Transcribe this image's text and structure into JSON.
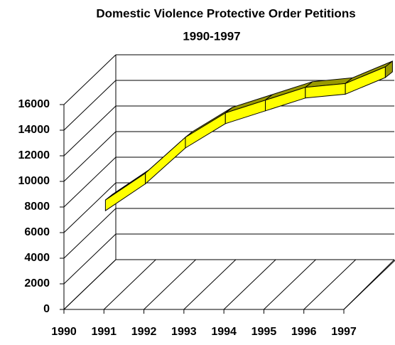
{
  "chart_data": {
    "type": "line3d",
    "title": "Domestic Violence Protective Order Petitions",
    "subtitle": "1990-1997",
    "categories": [
      "1990",
      "1991",
      "1992",
      "1993",
      "1994",
      "1995",
      "1996",
      "1997"
    ],
    "values": [
      4600,
      6700,
      9500,
      11400,
      12400,
      13400,
      13700,
      15000
    ],
    "color": "#ffff00",
    "top_color": "#999900",
    "ylim": [
      0,
      16000
    ],
    "yticks": [
      0,
      2000,
      4000,
      6000,
      8000,
      10000,
      12000,
      14000,
      16000
    ],
    "grid": true
  }
}
